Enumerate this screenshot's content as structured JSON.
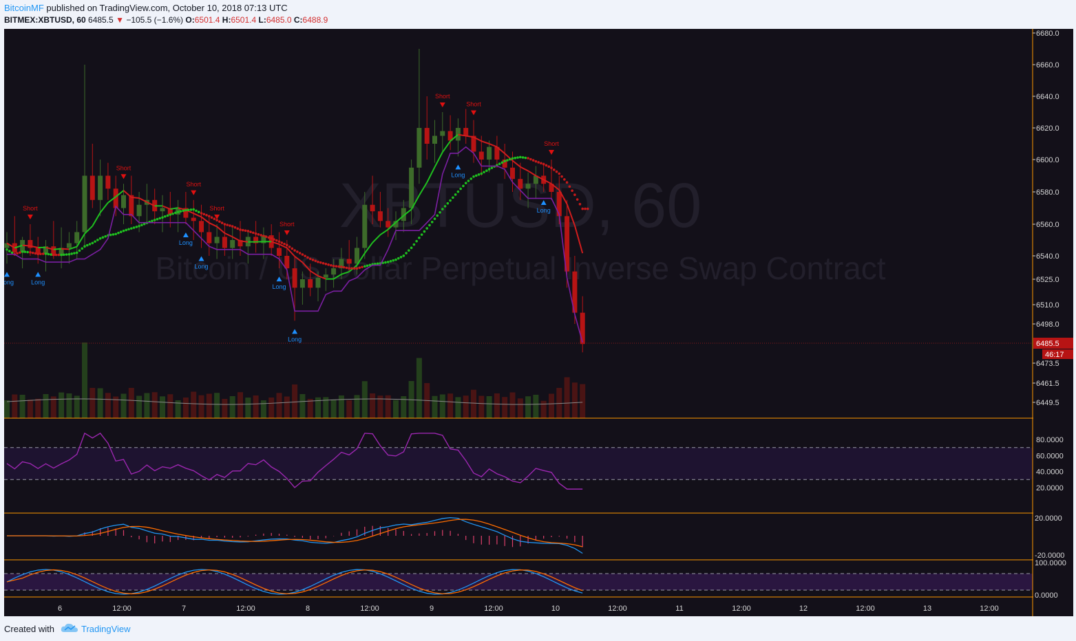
{
  "header": {
    "author": "BitcoinMF",
    "published_text": "published on TradingView.com, October 10, 2018 07:13 UTC",
    "symbol": "BITMEX:XBTUSD, 60",
    "last": "6485.5",
    "change": "−105.5 (−1.6%)",
    "open_label": "O:",
    "open": "6501.4",
    "high_label": "H:",
    "high": "6501.4",
    "low_label": "L:",
    "low": "6485.0",
    "close_label": "C:",
    "close": "6488.9"
  },
  "watermark": {
    "line1": "XBTUSD, 60",
    "line2": "Bitcoin / US Dollar Perpetual Inverse Swap Contract"
  },
  "footer": {
    "created_with": "Created with",
    "brand": "TradingView",
    "logo_icon": "tradingview-cloud-icon"
  },
  "colors": {
    "background": "#131019",
    "bull": "#3d6b2a",
    "bear": "#b71414",
    "signal_short": "#e01010",
    "signal_long": "#1e90ff",
    "ma_green": "#1fc11f",
    "ma_red": "#d21d1d",
    "channel": "#7b1fa2",
    "rsi": "#9c27b0",
    "macd": "#2196f3",
    "signal": "#ff6d00",
    "pane_border": "#ff9800",
    "price_tag": "#b71414"
  },
  "chart_data": {
    "type": "candlestick",
    "symbol": "BITMEX:XBTUSD",
    "interval": "60",
    "price_axis": {
      "ticks": [
        "6680.0",
        "6660.0",
        "6640.0",
        "6620.0",
        "6600.0",
        "6580.0",
        "6560.0",
        "6540.0",
        "6525.0",
        "6510.0",
        "6498.0",
        "6473.5",
        "6461.5",
        "6449.5"
      ],
      "last_price_tag": "6485.5",
      "countdown_tag": "46:17"
    },
    "time_axis": {
      "labels": [
        "6",
        "12:00",
        "7",
        "12:00",
        "8",
        "12:00",
        "9",
        "12:00",
        "10",
        "12:00",
        "11",
        "12:00",
        "12",
        "12:00",
        "13",
        "12:00"
      ]
    },
    "candles": [
      [
        6545,
        6555,
        6535,
        6548
      ],
      [
        6548,
        6565,
        6540,
        6542
      ],
      [
        6542,
        6552,
        6532,
        6550
      ],
      [
        6550,
        6560,
        6540,
        6545
      ],
      [
        6545,
        6552,
        6535,
        6541
      ],
      [
        6541,
        6550,
        6530,
        6546
      ],
      [
        6546,
        6562,
        6538,
        6540
      ],
      [
        6540,
        6558,
        6532,
        6545
      ],
      [
        6545,
        6555,
        6535,
        6548
      ],
      [
        6548,
        6562,
        6538,
        6555
      ],
      [
        6555,
        6660,
        6545,
        6590
      ],
      [
        6590,
        6610,
        6570,
        6575
      ],
      [
        6575,
        6600,
        6565,
        6590
      ],
      [
        6590,
        6598,
        6575,
        6582
      ],
      [
        6582,
        6590,
        6565,
        6570
      ],
      [
        6570,
        6585,
        6560,
        6578
      ],
      [
        6578,
        6590,
        6560,
        6565
      ],
      [
        6565,
        6580,
        6555,
        6572
      ],
      [
        6572,
        6585,
        6560,
        6575
      ],
      [
        6575,
        6582,
        6560,
        6568
      ],
      [
        6568,
        6578,
        6555,
        6570
      ],
      [
        6570,
        6580,
        6558,
        6566
      ],
      [
        6566,
        6575,
        6555,
        6570
      ],
      [
        6570,
        6580,
        6560,
        6564
      ],
      [
        6564,
        6575,
        6550,
        6562
      ],
      [
        6562,
        6572,
        6545,
        6555
      ],
      [
        6555,
        6565,
        6540,
        6548
      ],
      [
        6548,
        6560,
        6538,
        6552
      ],
      [
        6552,
        6560,
        6540,
        6545
      ],
      [
        6545,
        6558,
        6538,
        6550
      ],
      [
        6550,
        6562,
        6540,
        6546
      ],
      [
        6546,
        6556,
        6535,
        6552
      ],
      [
        6552,
        6562,
        6542,
        6548
      ],
      [
        6548,
        6558,
        6538,
        6553
      ],
      [
        6553,
        6560,
        6540,
        6545
      ],
      [
        6545,
        6555,
        6532,
        6540
      ],
      [
        6540,
        6550,
        6525,
        6532
      ],
      [
        6532,
        6540,
        6500,
        6520
      ],
      [
        6520,
        6530,
        6510,
        6525
      ],
      [
        6525,
        6535,
        6515,
        6520
      ],
      [
        6520,
        6530,
        6512,
        6526
      ],
      [
        6526,
        6532,
        6518,
        6528
      ],
      [
        6528,
        6538,
        6520,
        6532
      ],
      [
        6532,
        6545,
        6525,
        6538
      ],
      [
        6538,
        6550,
        6530,
        6535
      ],
      [
        6535,
        6552,
        6528,
        6545
      ],
      [
        6545,
        6580,
        6538,
        6572
      ],
      [
        6572,
        6590,
        6560,
        6568
      ],
      [
        6568,
        6580,
        6558,
        6562
      ],
      [
        6562,
        6570,
        6552,
        6558
      ],
      [
        6558,
        6568,
        6550,
        6562
      ],
      [
        6562,
        6575,
        6555,
        6570
      ],
      [
        6570,
        6600,
        6560,
        6595
      ],
      [
        6595,
        6670,
        6585,
        6620
      ],
      [
        6620,
        6640,
        6600,
        6610
      ],
      [
        6610,
        6625,
        6598,
        6615
      ],
      [
        6615,
        6630,
        6605,
        6618
      ],
      [
        6618,
        6628,
        6606,
        6612
      ],
      [
        6612,
        6626,
        6602,
        6620
      ],
      [
        6620,
        6632,
        6610,
        6615
      ],
      [
        6615,
        6625,
        6598,
        6605
      ],
      [
        6605,
        6615,
        6590,
        6600
      ],
      [
        6600,
        6612,
        6592,
        6608
      ],
      [
        6608,
        6615,
        6595,
        6600
      ],
      [
        6600,
        6610,
        6588,
        6595
      ],
      [
        6595,
        6605,
        6580,
        6588
      ],
      [
        6588,
        6598,
        6575,
        6582
      ],
      [
        6582,
        6592,
        6570,
        6585
      ],
      [
        6585,
        6596,
        6576,
        6590
      ],
      [
        6590,
        6598,
        6580,
        6585
      ],
      [
        6585,
        6600,
        6575,
        6580
      ],
      [
        6580,
        6590,
        6560,
        6565
      ],
      [
        6565,
        6575,
        6520,
        6530
      ],
      [
        6530,
        6540,
        6498,
        6505
      ],
      [
        6505,
        6515,
        6480,
        6485
      ]
    ],
    "rsi": {
      "range": [
        0,
        100
      ],
      "bands": [
        30,
        70
      ],
      "ticks": [
        "80.0000",
        "60.0000",
        "40.0000",
        "20.0000"
      ]
    },
    "macd": {
      "ticks": [
        "20.0000",
        "-20.0000"
      ]
    },
    "stoch": {
      "range": [
        0,
        100
      ],
      "ticks": [
        "100.0000",
        "0.0000"
      ]
    },
    "signals": {
      "short_label": "Short",
      "long_label": "Long"
    }
  }
}
